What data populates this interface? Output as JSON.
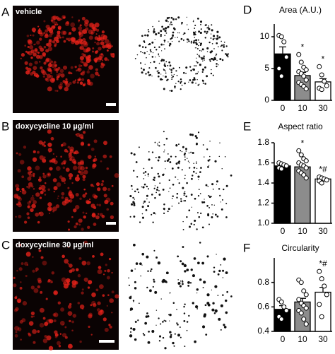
{
  "image_panels": [
    {
      "letter": "A",
      "label": "vehicle"
    },
    {
      "letter": "B",
      "label": "doxycycline 10 µg/ml"
    },
    {
      "letter": "C",
      "label": "doxycycline 30 µg/ml"
    }
  ],
  "chart_data": [
    {
      "type": "bar",
      "panel": "D",
      "title": "Area (A.U.)",
      "categories": [
        "0",
        "10",
        "30"
      ],
      "values": [
        7.3,
        3.9,
        2.9
      ],
      "errors": [
        1.1,
        0.5,
        0.5
      ],
      "colors": [
        "#000000",
        "#8c8c8c",
        "#ffffff"
      ],
      "points": [
        [
          10.2,
          10.0,
          9.2,
          6.8,
          5.0,
          3.8
        ],
        [
          7.2,
          6.0,
          5.2,
          4.8,
          4.5,
          4.2,
          3.8,
          3.2,
          2.8,
          2.5,
          2.2,
          1.8
        ],
        [
          5.3,
          4.0,
          3.0,
          2.3,
          1.9,
          1.7
        ]
      ],
      "annotations": [
        null,
        "*",
        "*"
      ],
      "ylim": [
        0,
        12
      ],
      "yticks": [
        0,
        5,
        10
      ]
    },
    {
      "type": "bar",
      "panel": "E",
      "title": "Aspect ratio",
      "categories": [
        "0",
        "10",
        "30"
      ],
      "values": [
        1.57,
        1.56,
        1.44
      ],
      "errors": [
        0.02,
        0.02,
        0.01
      ],
      "colors": [
        "#000000",
        "#8c8c8c",
        "#ffffff"
      ],
      "points": [
        [
          1.6,
          1.59,
          1.58,
          1.57,
          1.55,
          1.54
        ],
        [
          1.72,
          1.68,
          1.64,
          1.62,
          1.6,
          1.58,
          1.57,
          1.55,
          1.52,
          1.5,
          1.48,
          1.45
        ],
        [
          1.46,
          1.45,
          1.44,
          1.43,
          1.42,
          1.4
        ]
      ],
      "annotations": [
        null,
        "*",
        "*#"
      ],
      "ylim": [
        1.0,
        1.8
      ],
      "yticks": [
        {
          "value": 1.0,
          "label": "1.0"
        },
        1.2,
        1.4,
        1.6,
        1.8
      ]
    },
    {
      "type": "bar",
      "panel": "F",
      "title": "Circularity",
      "categories": [
        "0",
        "10",
        "30"
      ],
      "values": [
        0.58,
        0.64,
        0.72
      ],
      "errors": [
        0.03,
        0.03,
        0.04
      ],
      "colors": [
        "#000000",
        "#8c8c8c",
        "#ffffff"
      ],
      "points": [
        [
          0.66,
          0.64,
          0.6,
          0.57,
          0.52,
          0.5
        ],
        [
          0.82,
          0.8,
          0.73,
          0.7,
          0.66,
          0.63,
          0.61,
          0.59,
          0.57,
          0.55,
          0.5,
          0.46
        ],
        [
          0.89,
          0.83,
          0.77,
          0.7,
          0.62,
          0.52
        ]
      ],
      "annotations": [
        null,
        null,
        "*#"
      ],
      "ylim": [
        0.4,
        1.0
      ],
      "yticks": [
        0.4,
        0.6,
        0.8
      ]
    }
  ]
}
